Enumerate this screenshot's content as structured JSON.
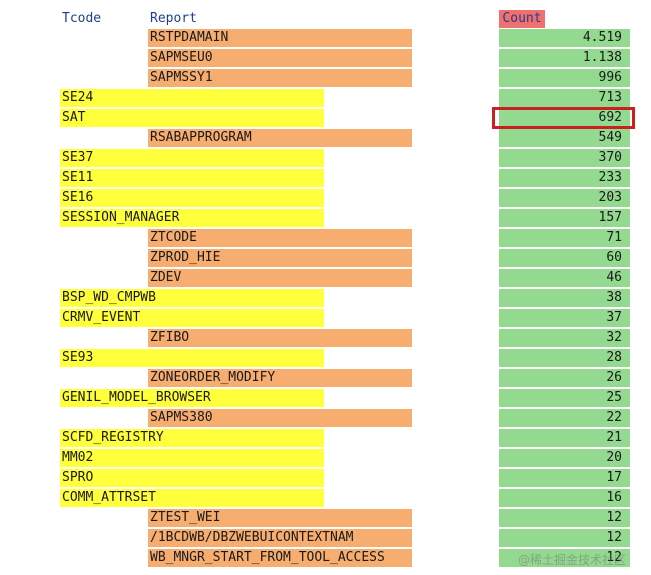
{
  "headers": {
    "tcode": "Tcode",
    "report": "Report",
    "count": "Count"
  },
  "rows": [
    {
      "type": "report",
      "name": "RSTPDAMAIN",
      "count": "4.519"
    },
    {
      "type": "report",
      "name": "SAPMSEU0",
      "count": "1.138"
    },
    {
      "type": "report",
      "name": "SAPMSSY1",
      "count": "996"
    },
    {
      "type": "tcode",
      "name": "SE24",
      "count": "713"
    },
    {
      "type": "tcode",
      "name": "SAT",
      "count": "692",
      "highlighted": true
    },
    {
      "type": "report",
      "name": "RSABAPPROGRAM",
      "count": "549"
    },
    {
      "type": "tcode",
      "name": "SE37",
      "count": "370"
    },
    {
      "type": "tcode",
      "name": "SE11",
      "count": "233"
    },
    {
      "type": "tcode",
      "name": "SE16",
      "count": "203"
    },
    {
      "type": "tcode",
      "name": "SESSION_MANAGER",
      "count": "157"
    },
    {
      "type": "report",
      "name": "ZTCODE",
      "count": "71"
    },
    {
      "type": "report",
      "name": "ZPROD_HIE",
      "count": "60"
    },
    {
      "type": "report",
      "name": "ZDEV",
      "count": "46"
    },
    {
      "type": "tcode",
      "name": "BSP_WD_CMPWB",
      "count": "38"
    },
    {
      "type": "tcode",
      "name": "CRMV_EVENT",
      "count": "37"
    },
    {
      "type": "report",
      "name": "ZFIBO",
      "count": "32"
    },
    {
      "type": "tcode",
      "name": "SE93",
      "count": "28"
    },
    {
      "type": "report",
      "name": "ZONEORDER_MODIFY",
      "count": "26"
    },
    {
      "type": "tcode",
      "name": "GENIL_MODEL_BROWSER",
      "count": "25"
    },
    {
      "type": "report",
      "name": "SAPMS380",
      "count": "22"
    },
    {
      "type": "tcode",
      "name": "SCFD_REGISTRY",
      "count": "21"
    },
    {
      "type": "tcode",
      "name": "MM02",
      "count": "20"
    },
    {
      "type": "tcode",
      "name": "SPRO",
      "count": "17"
    },
    {
      "type": "tcode",
      "name": "COMM_ATTRSET",
      "count": "16"
    },
    {
      "type": "report",
      "name": "ZTEST_WEI",
      "count": "12"
    },
    {
      "type": "report",
      "name": "/1BCDWB/DBZWEBUICONTEXTNAM",
      "count": "12"
    },
    {
      "type": "report",
      "name": "WB_MNGR_START_FROM_TOOL_ACCESS",
      "count": "12"
    }
  ],
  "colors": {
    "tcode_bg": "#ffff3c",
    "report_bg": "#f6ad6f",
    "count_bg": "#93d98f",
    "count_header_bg": "#f26f6f",
    "highlight_border": "#cc1f1f",
    "header_text": "#1f3f8f"
  },
  "watermark": "@稀土掘金技术社区"
}
